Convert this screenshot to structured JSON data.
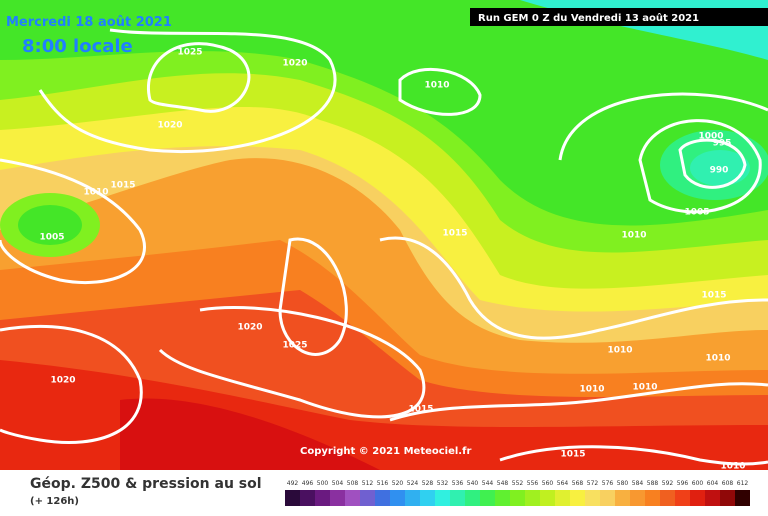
{
  "header": {
    "date": "Mercredi 18 août 2021",
    "time": "8:00 locale",
    "run": "Run GEM 0 Z du Vendredi 13 août 2021"
  },
  "footer": {
    "title": "Géop. Z500 & pression au sol",
    "subtitle": "(+ 126h)",
    "copyright": "Copyright © 2021 Meteociel.fr"
  },
  "isobar_labels": [
    "1025",
    "1020",
    "1010",
    "1020",
    "1015",
    "1010",
    "1005",
    "1015",
    "1000",
    "995",
    "990",
    "1005",
    "1010",
    "1015",
    "1020",
    "1025",
    "1020",
    "1010",
    "1010",
    "1010",
    "1010",
    "1015",
    "1015",
    "1010"
  ],
  "legend": {
    "values": [
      492,
      496,
      500,
      504,
      508,
      512,
      516,
      520,
      524,
      528,
      532,
      536,
      540,
      544,
      548,
      552,
      556,
      560,
      564,
      568,
      572,
      576,
      580,
      584,
      588,
      592,
      596,
      600,
      604,
      608,
      612
    ],
    "colors": [
      "#2a0a3a",
      "#4a1060",
      "#6a1a80",
      "#8a30a0",
      "#a050c0",
      "#7060d0",
      "#4070e0",
      "#3090f0",
      "#30b0f0",
      "#30d0f0",
      "#30f0e0",
      "#30f0b0",
      "#30f080",
      "#40f050",
      "#60f030",
      "#80f020",
      "#a0f020",
      "#c0f020",
      "#e0f030",
      "#f8f040",
      "#f8e060",
      "#f8d060",
      "#f8b040",
      "#f89830",
      "#f88020",
      "#f06020",
      "#f04018",
      "#e02010",
      "#c01010",
      "#900808",
      "#300000"
    ]
  }
}
